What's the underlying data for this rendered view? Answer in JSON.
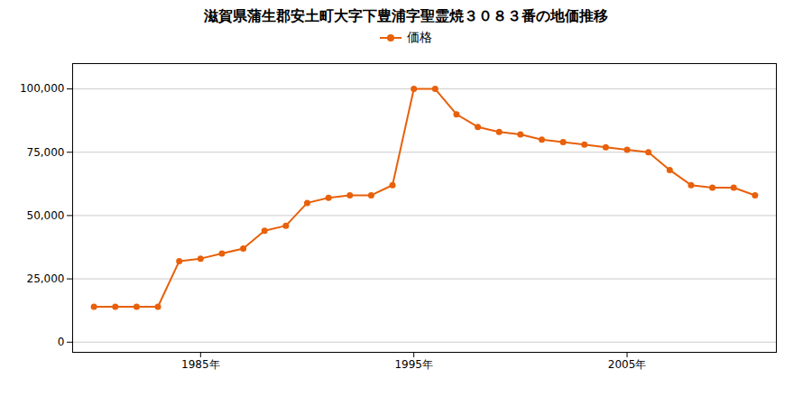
{
  "chart_data": {
    "type": "line",
    "title": "滋賀県蒲生郡安土町大字下豊浦字聖霊焼３０８３番の地価推移",
    "x": [
      1980,
      1981,
      1982,
      1983,
      1984,
      1985,
      1986,
      1987,
      1988,
      1989,
      1990,
      1991,
      1992,
      1993,
      1994,
      1995,
      1996,
      1997,
      1998,
      1999,
      2000,
      2001,
      2002,
      2003,
      2004,
      2005,
      2006,
      2007,
      2008,
      2009,
      2010,
      2011
    ],
    "series": [
      {
        "name": "価格",
        "color": "#E8600A",
        "marker": "circle",
        "values": [
          14000,
          14000,
          14000,
          14000,
          32000,
          33000,
          35000,
          37000,
          44000,
          46000,
          55000,
          57000,
          58000,
          58000,
          62000,
          100000,
          100000,
          90000,
          85000,
          83000,
          82000,
          80000,
          79000,
          78000,
          77000,
          76000,
          75000,
          68000,
          62000,
          61000,
          61000,
          58000
        ]
      }
    ],
    "xlim": [
      1979.0,
      2012.0
    ],
    "xticks": [
      {
        "value": 1985,
        "label": "1985年"
      },
      {
        "value": 1995,
        "label": "1995年"
      },
      {
        "value": 2005,
        "label": "2005年"
      }
    ],
    "ylim": [
      -4000,
      110000
    ],
    "yticks": [
      0,
      {
        "value": 25000,
        "label": "25,000"
      },
      {
        "value": 50000,
        "label": "50,000"
      },
      {
        "value": 75000,
        "label": "75,000"
      },
      {
        "value": 100000,
        "label": "100,000"
      }
    ],
    "grid": "y",
    "legend": "top"
  }
}
